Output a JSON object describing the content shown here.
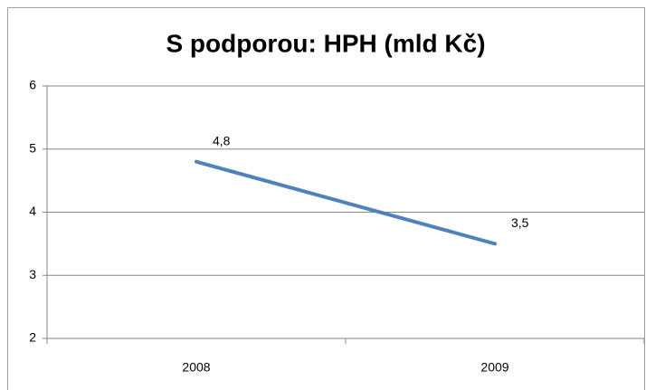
{
  "chart_data": {
    "type": "line",
    "title": "S podporou: HPH (mld Kč)",
    "categories": [
      "2008",
      "2009"
    ],
    "series": [
      {
        "name": null,
        "color": "#4f81bd",
        "values": [
          4.8,
          3.5
        ],
        "value_labels": [
          "4,8",
          "3,5"
        ]
      }
    ],
    "ylim": [
      2,
      6
    ],
    "yticks": [
      2,
      3,
      4,
      5,
      6
    ],
    "grid": true
  }
}
